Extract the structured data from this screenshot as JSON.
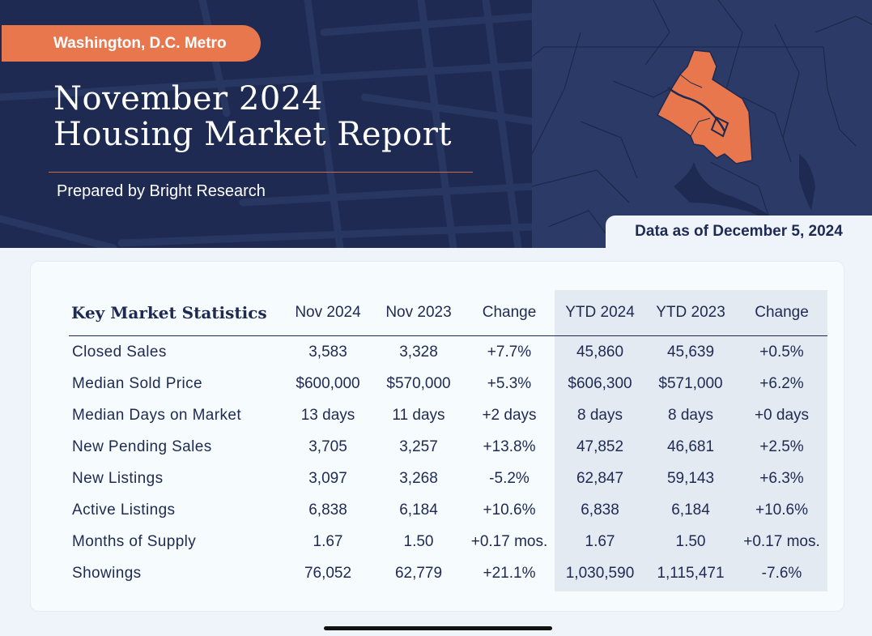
{
  "header": {
    "region": "Washington, D.C. Metro",
    "title_line1": "November 2024",
    "title_line2": "Housing Market Report",
    "prepared_by": "Prepared by Bright Research",
    "data_as_of": "Data as of December 5, 2024"
  },
  "colors": {
    "navy": "#1e2a52",
    "accent": "#e8774d",
    "map_fill": "#2b3a66",
    "background": "#eef4fa"
  },
  "table": {
    "title": "Key Market Statistics",
    "columns": [
      "Nov 2024",
      "Nov 2023",
      "Change",
      "YTD 2024",
      "YTD 2023",
      "Change"
    ],
    "rows": [
      {
        "label": "Closed Sales",
        "values": [
          "3,583",
          "3,328",
          "+7.7%",
          "45,860",
          "45,639",
          "+0.5%"
        ]
      },
      {
        "label": "Median Sold Price",
        "values": [
          "$600,000",
          "$570,000",
          "+5.3%",
          "$606,300",
          "$571,000",
          "+6.2%"
        ]
      },
      {
        "label": "Median Days on Market",
        "values": [
          "13 days",
          "11 days",
          "+2 days",
          "8 days",
          "8 days",
          "+0 days"
        ]
      },
      {
        "label": "New Pending Sales",
        "values": [
          "3,705",
          "3,257",
          "+13.8%",
          "47,852",
          "46,681",
          "+2.5%"
        ]
      },
      {
        "label": "New Listings",
        "values": [
          "3,097",
          "3,268",
          "-5.2%",
          "62,847",
          "59,143",
          "+6.3%"
        ]
      },
      {
        "label": "Active Listings",
        "values": [
          "6,838",
          "6,184",
          "+10.6%",
          "6,838",
          "6,184",
          "+10.6%"
        ]
      },
      {
        "label": "Months of Supply",
        "values": [
          "1.67",
          "1.50",
          "+0.17 mos.",
          "1.67",
          "1.50",
          "+0.17 mos."
        ]
      },
      {
        "label": "Showings",
        "values": [
          "76,052",
          "62,779",
          "+21.1%",
          "1,030,590",
          "1,115,471",
          "-7.6%"
        ]
      }
    ]
  }
}
